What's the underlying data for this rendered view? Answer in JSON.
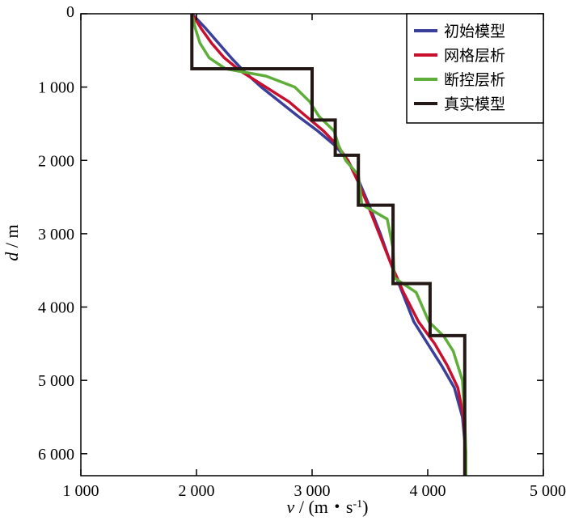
{
  "chart_data": {
    "type": "line",
    "orientation": "vertical-profile",
    "x_axis": {
      "label_var": "v",
      "label_unit": "(m・s",
      "label_sup": "-1",
      "label_close": ")",
      "range": [
        1000,
        5000
      ],
      "ticks": [
        1000,
        2000,
        3000,
        4000,
        5000
      ],
      "tick_labels": [
        "1 000",
        "2 000",
        "3 000",
        "4 000",
        "5 000"
      ]
    },
    "y_axis": {
      "label_var": "d",
      "label_unit": "/ m",
      "range": [
        0,
        6300
      ],
      "inverted": true,
      "ticks": [
        0,
        1000,
        2000,
        3000,
        4000,
        5000,
        6000
      ],
      "tick_labels": [
        "0",
        "1 000",
        "2 000",
        "3 000",
        "4 000",
        "5 000",
        "6 000"
      ]
    },
    "grid": false,
    "legend_position": "top-right",
    "series": [
      {
        "name": "初始模型",
        "color": "#3a3f9a",
        "points": [
          [
            1960,
            0
          ],
          [
            2080,
            200
          ],
          [
            2190,
            400
          ],
          [
            2300,
            600
          ],
          [
            2420,
            800
          ],
          [
            2560,
            1000
          ],
          [
            2720,
            1200
          ],
          [
            2880,
            1400
          ],
          [
            3050,
            1600
          ],
          [
            3200,
            1800
          ],
          [
            3310,
            2000
          ],
          [
            3410,
            2300
          ],
          [
            3490,
            2600
          ],
          [
            3590,
            3000
          ],
          [
            3680,
            3400
          ],
          [
            3780,
            3800
          ],
          [
            3880,
            4200
          ],
          [
            4000,
            4500
          ],
          [
            4120,
            4800
          ],
          [
            4230,
            5100
          ],
          [
            4300,
            5500
          ],
          [
            4330,
            6000
          ],
          [
            4330,
            6300
          ]
        ]
      },
      {
        "name": "网格层析",
        "color": "#c8102e",
        "points": [
          [
            1960,
            0
          ],
          [
            2040,
            200
          ],
          [
            2130,
            400
          ],
          [
            2240,
            600
          ],
          [
            2380,
            780
          ],
          [
            2600,
            1000
          ],
          [
            2800,
            1200
          ],
          [
            2950,
            1400
          ],
          [
            3100,
            1600
          ],
          [
            3220,
            1800
          ],
          [
            3310,
            2000
          ],
          [
            3400,
            2300
          ],
          [
            3480,
            2600
          ],
          [
            3580,
            3000
          ],
          [
            3680,
            3400
          ],
          [
            3790,
            3800
          ],
          [
            3920,
            4200
          ],
          [
            4060,
            4500
          ],
          [
            4170,
            4800
          ],
          [
            4260,
            5100
          ],
          [
            4310,
            5500
          ],
          [
            4330,
            6000
          ],
          [
            4330,
            6300
          ]
        ]
      },
      {
        "name": "断控层析",
        "color": "#5fae3a",
        "points": [
          [
            1960,
            0
          ],
          [
            1990,
            200
          ],
          [
            2030,
            400
          ],
          [
            2110,
            600
          ],
          [
            2250,
            750
          ],
          [
            2600,
            850
          ],
          [
            2850,
            1000
          ],
          [
            2980,
            1200
          ],
          [
            3060,
            1400
          ],
          [
            3190,
            1600
          ],
          [
            3230,
            1800
          ],
          [
            3290,
            2000
          ],
          [
            3400,
            2200
          ],
          [
            3430,
            2600
          ],
          [
            3650,
            2800
          ],
          [
            3700,
            3200
          ],
          [
            3710,
            3600
          ],
          [
            3900,
            3800
          ],
          [
            4010,
            4200
          ],
          [
            4140,
            4400
          ],
          [
            4220,
            4600
          ],
          [
            4300,
            5000
          ],
          [
            4320,
            5500
          ],
          [
            4330,
            6000
          ],
          [
            4330,
            6300
          ]
        ]
      },
      {
        "name": "真实模型",
        "color": "#231815",
        "points": [
          [
            1960,
            0
          ],
          [
            1960,
            750
          ],
          [
            3000,
            750
          ],
          [
            3000,
            1450
          ],
          [
            3200,
            1450
          ],
          [
            3200,
            1930
          ],
          [
            3400,
            1930
          ],
          [
            3400,
            2610
          ],
          [
            3700,
            2610
          ],
          [
            3700,
            3680
          ],
          [
            4020,
            3680
          ],
          [
            4020,
            4390
          ],
          [
            4320,
            4390
          ],
          [
            4320,
            6300
          ]
        ]
      }
    ]
  }
}
